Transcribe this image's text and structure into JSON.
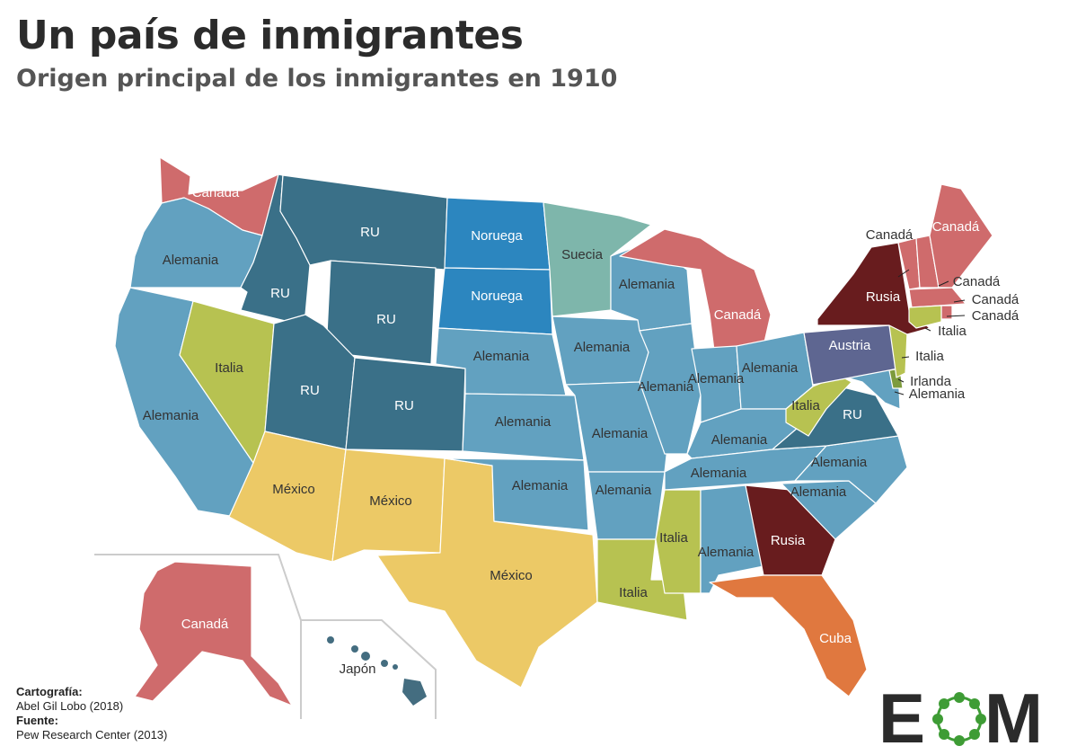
{
  "header": {
    "title": "Un país de inmigrantes",
    "subtitle": "Origen principal de los inmigrantes en 1910"
  },
  "colors": {
    "Alemania": "#62a1c0",
    "RU": "#3a7088",
    "Canadá": "#cf6b6c",
    "Italia": "#b7c251",
    "México": "#ecc966",
    "Noruega": "#2c86bf",
    "Suecia": "#7eb6ab",
    "Rusia": "#681c1e",
    "Austria": "#5e6691",
    "Cuba": "#e0783f",
    "Irlanda": "#7d9b3c",
    "Japón": "#446d80"
  },
  "map_labels": {
    "washington": "Canadá",
    "oregon": "Alemania",
    "california": "Alemania",
    "idaho": "RU",
    "nevada": "Italia",
    "montana": "RU",
    "wyoming": "RU",
    "utah": "RU",
    "colorado": "RU",
    "arizona": "México",
    "new_mexico": "México",
    "texas": "México",
    "north_dakota": "Noruega",
    "south_dakota": "Noruega",
    "nebraska": "Alemania",
    "kansas": "Alemania",
    "oklahoma": "Alemania",
    "minnesota": "Suecia",
    "iowa": "Alemania",
    "missouri": "Alemania",
    "arkansas": "Alemania",
    "louisiana": "Italia",
    "wisconsin": "Alemania",
    "illinois": "Alemania",
    "michigan": "Canadá",
    "indiana": "Alemania",
    "ohio": "Alemania",
    "kentucky": "Alemania",
    "tennessee": "Alemania",
    "mississippi": "Italia",
    "alabama": "Alemania",
    "georgia": "Rusia",
    "florida": "Cuba",
    "south_carolina": "Alemania",
    "north_carolina": "Alemania",
    "virginia": "RU",
    "west_virginia": "Italia",
    "pennsylvania": "Austria",
    "new_york": "Rusia",
    "vermont": "Canadá",
    "maine": "Canadá",
    "new_hampshire": "Canadá",
    "massachusetts": "Canadá",
    "rhode_island": "Canadá",
    "connecticut": "Italia",
    "new_jersey": "Italia",
    "delaware": "Irlanda",
    "maryland": "Alemania",
    "alaska": "Canadá",
    "hawaii": "Japón"
  },
  "credits": {
    "cartography_label": "Cartografía:",
    "cartography_value": "Abel Gil Lobo (2018)",
    "source_label": "Fuente:",
    "source_value": "Pew Research Center (2013)"
  },
  "logo": {
    "text_left": "E",
    "text_right": "M",
    "brand_color": "#3e9c35",
    "dark_color": "#2b2b2b"
  }
}
